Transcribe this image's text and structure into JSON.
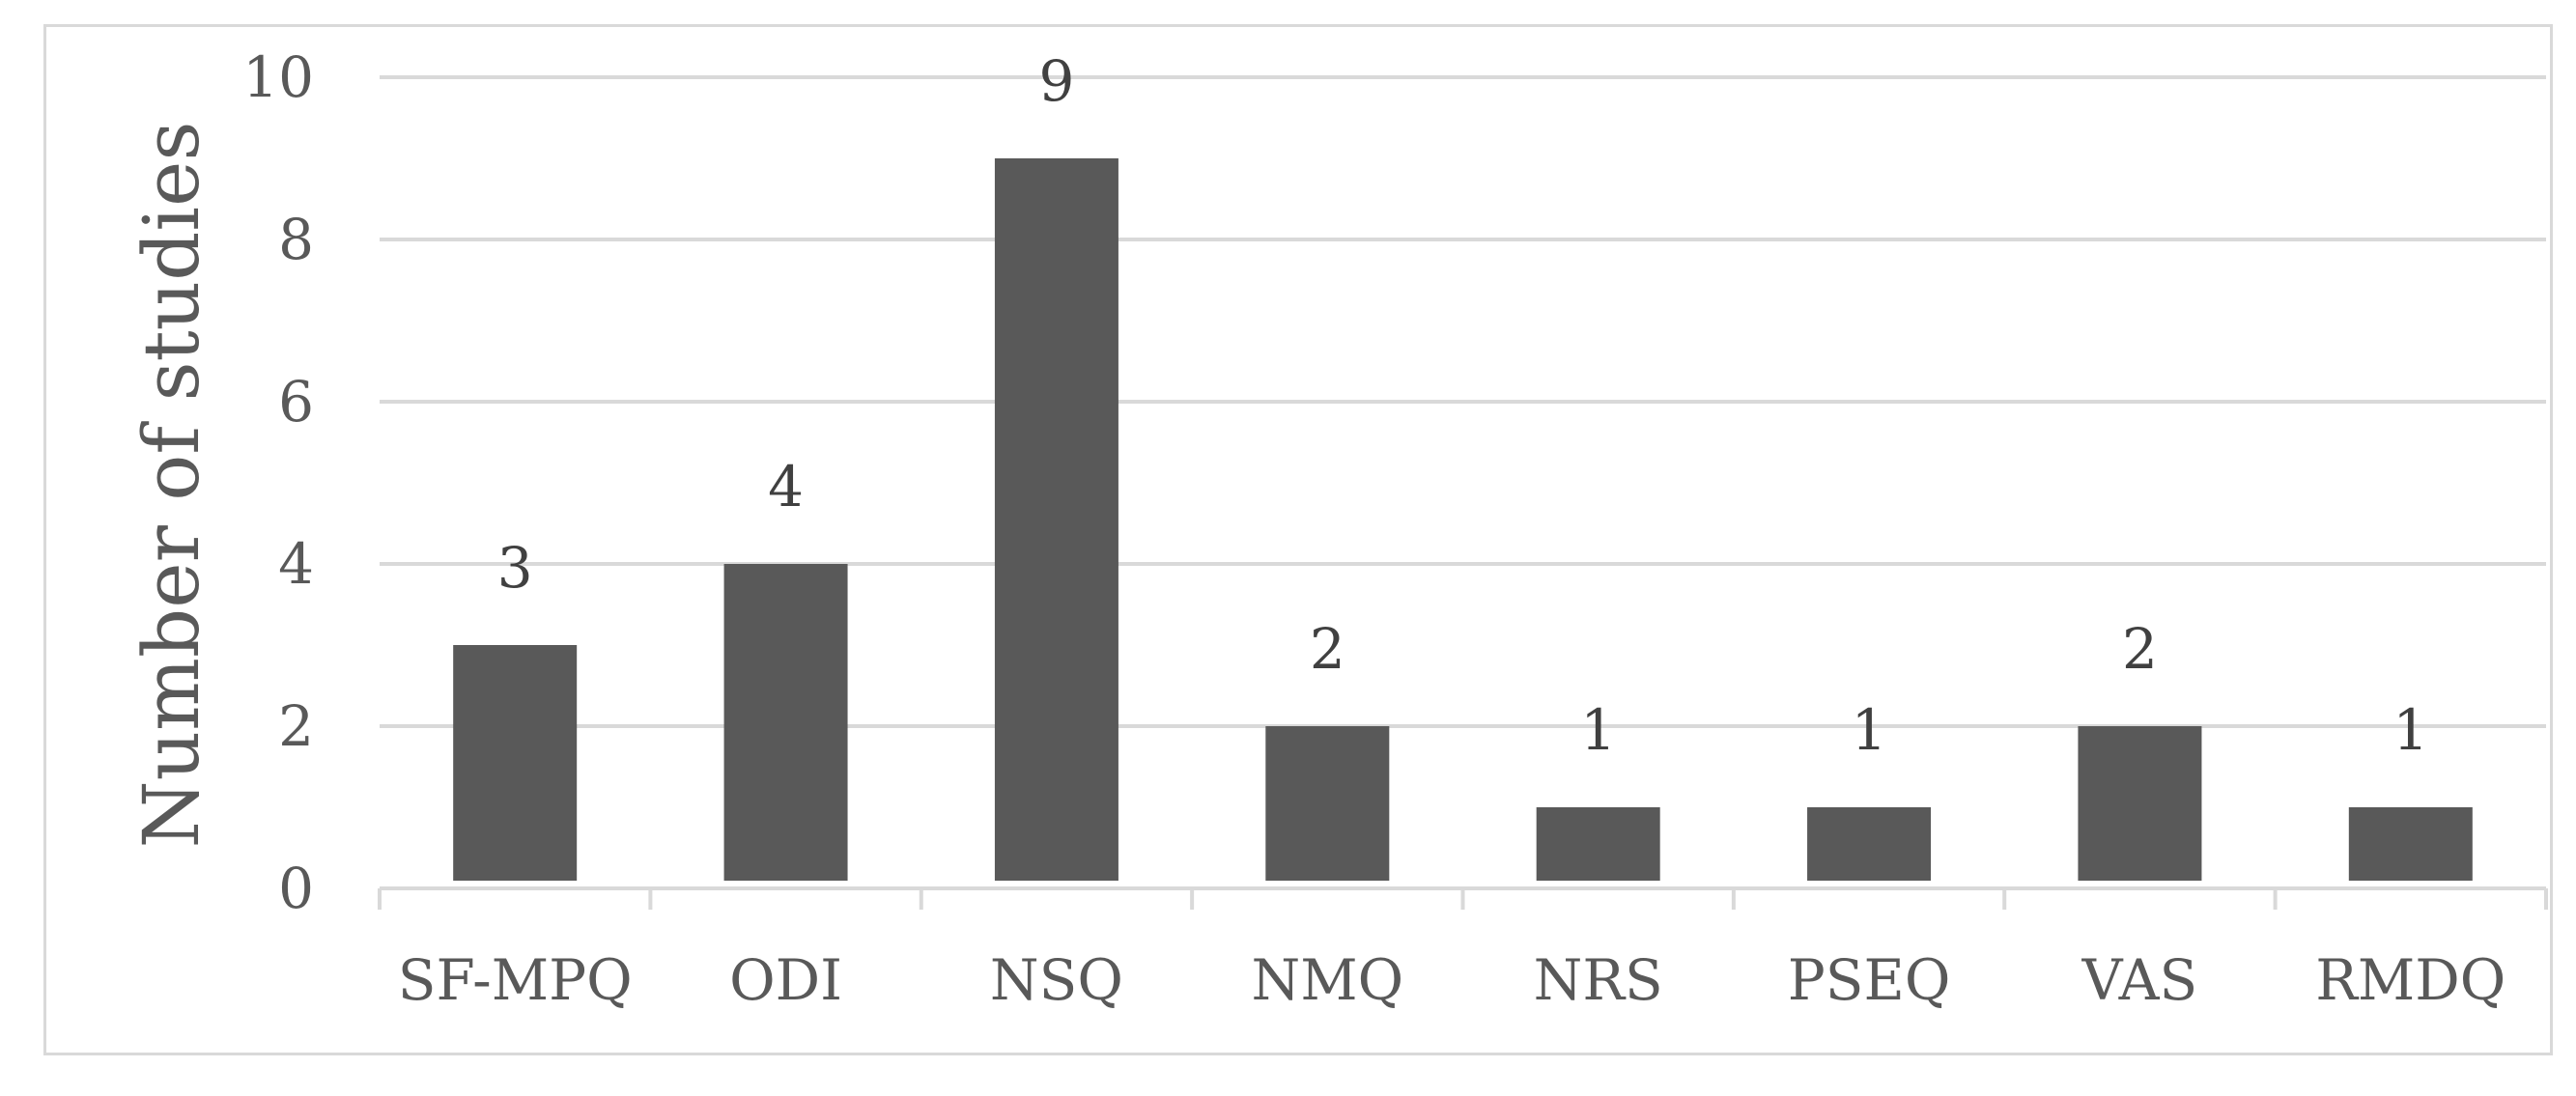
{
  "chart_data": {
    "type": "bar",
    "categories": [
      "SF-MPQ",
      "ODI",
      "NSQ",
      "NMQ",
      "NRS",
      "PSEQ",
      "VAS",
      "RMDQ"
    ],
    "values": [
      3,
      4,
      9,
      2,
      1,
      1,
      2,
      1
    ],
    "data_labels": [
      "3",
      "4",
      "9",
      "2",
      "1",
      "1",
      "2",
      "1"
    ],
    "title": "",
    "xlabel": "",
    "ylabel": "Number of studies",
    "ylim": [
      0,
      10
    ],
    "yticks": [
      0,
      2,
      4,
      6,
      8,
      10
    ],
    "grid": true,
    "legend": "none",
    "colors": {
      "bar": "#595959",
      "grid": "#d9d9d9",
      "axis": "#d9d9d9",
      "text": "#595959"
    }
  }
}
